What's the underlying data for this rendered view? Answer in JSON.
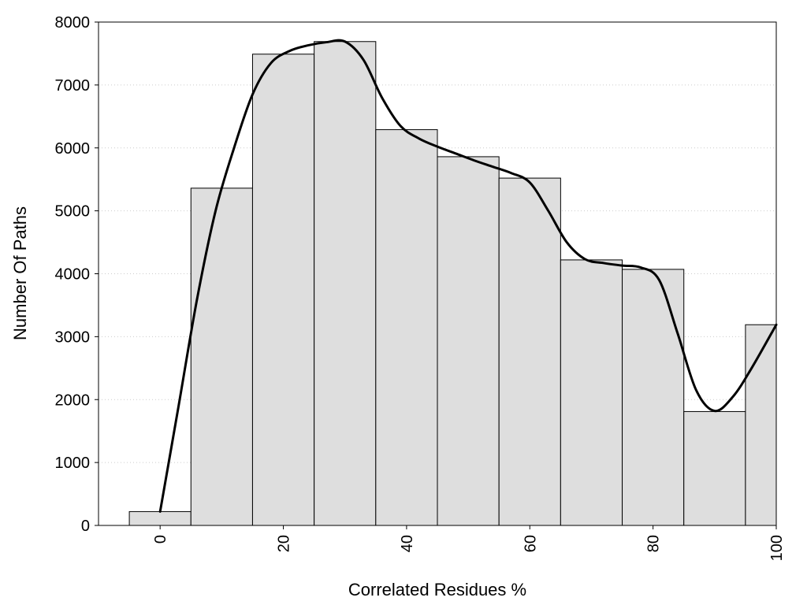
{
  "chart_data": {
    "type": "bar",
    "title": "",
    "xlabel": "Correlated Residues %",
    "ylabel": "Number Of Paths",
    "x": [
      0,
      10,
      20,
      30,
      40,
      50,
      60,
      70,
      80,
      90,
      100
    ],
    "values": [
      220,
      5360,
      7490,
      7690,
      6290,
      5860,
      5520,
      4220,
      4070,
      1810,
      3190
    ],
    "bin_width": 10,
    "xlim": [
      -10,
      100
    ],
    "ylim": [
      0,
      8000
    ],
    "x_ticks": [
      0,
      20,
      40,
      60,
      80,
      100
    ],
    "y_ticks": [
      0,
      1000,
      2000,
      3000,
      4000,
      5000,
      6000,
      7000,
      8000
    ],
    "grid": "horizontal dotted",
    "legend": "none",
    "bar_color": "#dedede",
    "curve": {
      "x": [
        0,
        3,
        6,
        9,
        12,
        15,
        18,
        21,
        24,
        27,
        30,
        33,
        36,
        39,
        42,
        45,
        48,
        51,
        54,
        57,
        60,
        63,
        66,
        69,
        72,
        75,
        78,
        81,
        84,
        87,
        90,
        93,
        96,
        100
      ],
      "y": [
        220,
        1900,
        3600,
        5000,
        6000,
        6850,
        7350,
        7540,
        7630,
        7680,
        7690,
        7400,
        6800,
        6350,
        6150,
        6020,
        5910,
        5800,
        5700,
        5600,
        5450,
        5000,
        4500,
        4230,
        4170,
        4130,
        4100,
        3900,
        3050,
        2150,
        1820,
        2050,
        2500,
        3190
      ]
    }
  }
}
